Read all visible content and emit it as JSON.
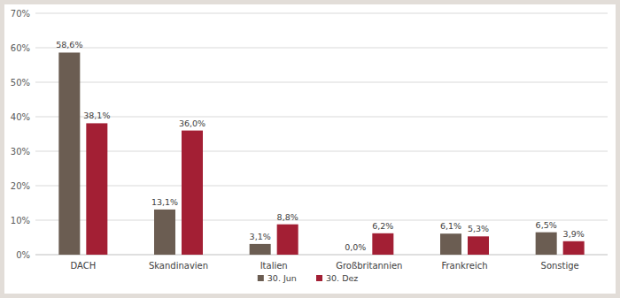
{
  "chart_data": {
    "type": "bar",
    "categories": [
      "DACH",
      "Skandinavien",
      "Italien",
      "Großbritannien",
      "Frankreich",
      "Sonstige"
    ],
    "series": [
      {
        "name": "30. Jun",
        "color": "#6b5d52",
        "values": [
          58.6,
          13.1,
          3.1,
          0.0,
          6.1,
          6.5
        ],
        "value_labels": [
          "58,6%",
          "13,1%",
          "3,1%",
          "0,0%",
          "6,1%",
          "6,5%"
        ]
      },
      {
        "name": "30. Dez",
        "color": "#a31f34",
        "values": [
          38.1,
          36.0,
          8.8,
          6.2,
          5.3,
          3.9
        ],
        "value_labels": [
          "38,1%",
          "36,0%",
          "8,8%",
          "6,2%",
          "5,3%",
          "3,9%"
        ]
      }
    ],
    "ylim": [
      0,
      70
    ],
    "yticks": [
      {
        "value": 0,
        "label": "0%"
      },
      {
        "value": 10,
        "label": "10%"
      },
      {
        "value": 20,
        "label": "20%"
      },
      {
        "value": 30,
        "label": "30%"
      },
      {
        "value": 40,
        "label": "40%"
      },
      {
        "value": 50,
        "label": "50%"
      },
      {
        "value": 60,
        "label": "60%"
      },
      {
        "value": 70,
        "label": "70%"
      }
    ],
    "grid": true,
    "data_labels": true,
    "legend": "bottom"
  }
}
